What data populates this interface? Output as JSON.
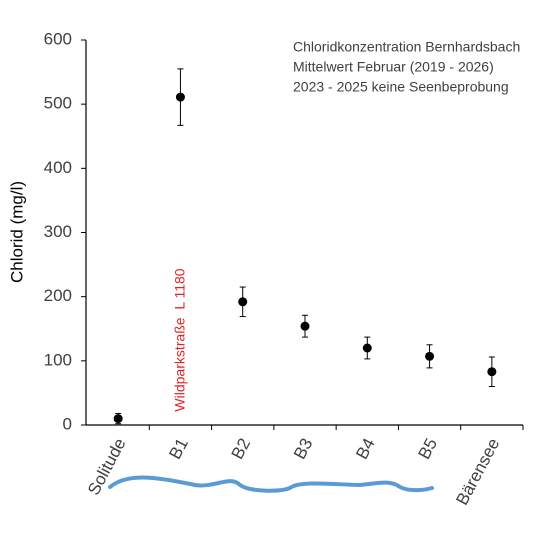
{
  "chart_data": {
    "type": "scatter",
    "title_lines": [
      "Chloridkonzentration Bernhardsbach",
      "Mittelwert Februar (2019 - 2026)",
      "2023 - 2025 keine Seenbeprobung"
    ],
    "ylabel": "Chlorid (mg/l)",
    "annotation": "Wildparkstraße  L 1180",
    "categories": [
      "Solitude",
      "B1",
      "B2",
      "B3",
      "B4",
      "B5",
      "Bärensee"
    ],
    "values": [
      10,
      511,
      192,
      154,
      120,
      107,
      83
    ],
    "errors": [
      8,
      44,
      23,
      17,
      17,
      18,
      23
    ],
    "color": "#000000",
    "ylim": [
      0,
      600
    ],
    "yticks": [
      0,
      100,
      200,
      300,
      400,
      500,
      600
    ],
    "grid": false
  }
}
